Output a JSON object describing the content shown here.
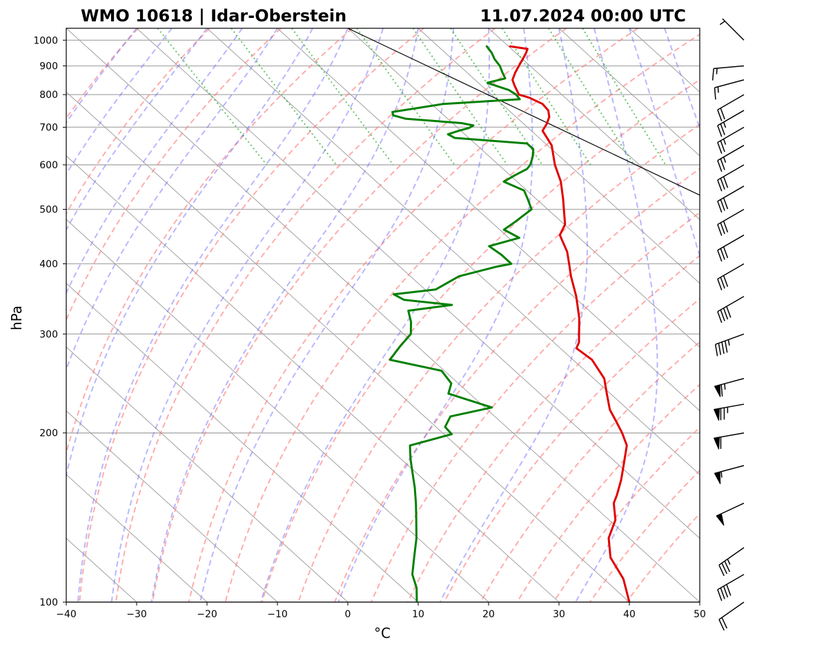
{
  "chart_data": {
    "type": "line",
    "subtype": "skew-T log-P sounding",
    "title_left": "WMO 10618 | Idar-Oberstein",
    "title_right": "11.07.2024 00:00 UTC",
    "xlabel": "°C",
    "ylabel": "hPa",
    "xlim": [
      -40,
      50
    ],
    "ylim": [
      1050,
      100
    ],
    "x_ticks": [
      -40,
      -30,
      -20,
      -10,
      0,
      10,
      20,
      30,
      40,
      50
    ],
    "x_tick_labels": [
      "−40",
      "−30",
      "−20",
      "−10",
      "0",
      "10",
      "20",
      "30",
      "40",
      "50"
    ],
    "y_ticks": [
      1000,
      900,
      800,
      700,
      600,
      500,
      400,
      300,
      200,
      100
    ],
    "y_tick_labels": [
      "1000",
      "900",
      "800",
      "700",
      "600",
      "500",
      "400",
      "300",
      "200",
      "100"
    ],
    "series": [
      {
        "name": "Temperature",
        "color": "#e00000",
        "points": [
          [
            975,
            20.2
          ],
          [
            965,
            22.3
          ],
          [
            950,
            21.5
          ],
          [
            925,
            20.0
          ],
          [
            900,
            18.4
          ],
          [
            875,
            16.8
          ],
          [
            850,
            15.3
          ],
          [
            830,
            14.7
          ],
          [
            800,
            13.9
          ],
          [
            790,
            14.9
          ],
          [
            770,
            15.8
          ],
          [
            750,
            15.6
          ],
          [
            730,
            14.7
          ],
          [
            710,
            13.3
          ],
          [
            690,
            11.6
          ],
          [
            650,
            10.6
          ],
          [
            600,
            8.0
          ],
          [
            560,
            6.2
          ],
          [
            520,
            3.7
          ],
          [
            500,
            2.3
          ],
          [
            470,
            0.1
          ],
          [
            450,
            -2.3
          ],
          [
            420,
            -3.9
          ],
          [
            400,
            -5.5
          ],
          [
            380,
            -7.2
          ],
          [
            350,
            -9.6
          ],
          [
            320,
            -12.6
          ],
          [
            300,
            -15.1
          ],
          [
            290,
            -16.4
          ],
          [
            283,
            -17.7
          ],
          [
            270,
            -17.3
          ],
          [
            250,
            -18.5
          ],
          [
            235,
            -20.5
          ],
          [
            220,
            -22.6
          ],
          [
            210,
            -23.5
          ],
          [
            200,
            -24.5
          ],
          [
            190,
            -25.8
          ],
          [
            175,
            -29.4
          ],
          [
            165,
            -32.0
          ],
          [
            155,
            -35.0
          ],
          [
            150,
            -36.7
          ],
          [
            140,
            -39.1
          ],
          [
            130,
            -42.9
          ],
          [
            120,
            -45.7
          ],
          [
            110,
            -47.2
          ],
          [
            100,
            -50.0
          ]
        ]
      },
      {
        "name": "Dewpoint",
        "color": "#008000",
        "points": [
          [
            975,
            16.9
          ],
          [
            950,
            16.6
          ],
          [
            925,
            16.0
          ],
          [
            900,
            15.7
          ],
          [
            875,
            15.0
          ],
          [
            855,
            14.5
          ],
          [
            840,
            11.3
          ],
          [
            830,
            12.0
          ],
          [
            815,
            13.2
          ],
          [
            800,
            13.5
          ],
          [
            785,
            13.3
          ],
          [
            770,
            1.7
          ],
          [
            745,
            -6.8
          ],
          [
            735,
            -7.2
          ],
          [
            725,
            -6.0
          ],
          [
            712,
            1.3
          ],
          [
            705,
            2.6
          ],
          [
            698,
            1.6
          ],
          [
            690,
            -0.3
          ],
          [
            680,
            -2.4
          ],
          [
            670,
            -2.0
          ],
          [
            655,
            7.4
          ],
          [
            640,
            7.4
          ],
          [
            620,
            6.1
          ],
          [
            600,
            4.5
          ],
          [
            590,
            3.4
          ],
          [
            575,
            0.7
          ],
          [
            560,
            -1.9
          ],
          [
            540,
            -0.4
          ],
          [
            520,
            -1.3
          ],
          [
            500,
            -2.3
          ],
          [
            475,
            -6.6
          ],
          [
            460,
            -9.4
          ],
          [
            445,
            -8.5
          ],
          [
            430,
            -14.1
          ],
          [
            415,
            -13.7
          ],
          [
            400,
            -13.7
          ],
          [
            395,
            -16.4
          ],
          [
            380,
            -23.1
          ],
          [
            360,
            -28.5
          ],
          [
            353,
            -35.2
          ],
          [
            345,
            -34.6
          ],
          [
            338,
            -28.6
          ],
          [
            330,
            -35.7
          ],
          [
            315,
            -37.1
          ],
          [
            300,
            -39.0
          ],
          [
            285,
            -42.5
          ],
          [
            270,
            -46.0
          ],
          [
            258,
            -40.4
          ],
          [
            245,
            -41.0
          ],
          [
            235,
            -43.0
          ],
          [
            222,
            -39.0
          ],
          [
            214,
            -46.3
          ],
          [
            205,
            -48.7
          ],
          [
            199,
            -48.9
          ],
          [
            190,
            -56.6
          ],
          [
            180,
            -58.6
          ],
          [
            170,
            -60.5
          ],
          [
            160,
            -62.5
          ],
          [
            150,
            -64.8
          ],
          [
            140,
            -67.4
          ],
          [
            130,
            -70.2
          ],
          [
            120,
            -73.6
          ],
          [
            112,
            -76.5
          ],
          [
            106,
            -78.0
          ],
          [
            100,
            -80.2
          ]
        ]
      }
    ],
    "parcel_line": {
      "name": "Parcel / reference line",
      "color": "#000000",
      "points": [
        [
          1050,
          0
        ],
        [
          250,
          50
        ]
      ]
    },
    "dry_adiabats_theta_K": [
      210,
      220,
      230,
      240,
      250,
      260,
      270,
      280,
      290,
      300,
      310,
      320,
      330,
      340,
      350,
      360,
      370,
      380,
      390,
      400,
      410,
      420,
      430
    ],
    "moist_adiabats_start_C": [
      -30,
      -25,
      -20,
      -15,
      -10,
      -5,
      0,
      5,
      10,
      15,
      20,
      25,
      30,
      35,
      40,
      45
    ],
    "mixing_ratios_gkg": [
      0.4,
      1,
      2,
      4,
      7,
      10,
      16,
      24,
      32
    ],
    "wind_barbs": [
      {
        "p": 1000,
        "speed_kt": 5,
        "dir_deg": 315
      },
      {
        "p": 900,
        "speed_kt": 15,
        "dir_deg": 265
      },
      {
        "p": 850,
        "speed_kt": 15,
        "dir_deg": 255
      },
      {
        "p": 800,
        "speed_kt": 20,
        "dir_deg": 240
      },
      {
        "p": 750,
        "speed_kt": 25,
        "dir_deg": 240
      },
      {
        "p": 700,
        "speed_kt": 25,
        "dir_deg": 240
      },
      {
        "p": 650,
        "speed_kt": 25,
        "dir_deg": 240
      },
      {
        "p": 600,
        "speed_kt": 30,
        "dir_deg": 240
      },
      {
        "p": 550,
        "speed_kt": 30,
        "dir_deg": 240
      },
      {
        "p": 500,
        "speed_kt": 30,
        "dir_deg": 240
      },
      {
        "p": 450,
        "speed_kt": 30,
        "dir_deg": 240
      },
      {
        "p": 400,
        "speed_kt": 30,
        "dir_deg": 240
      },
      {
        "p": 350,
        "speed_kt": 40,
        "dir_deg": 240
      },
      {
        "p": 300,
        "speed_kt": 45,
        "dir_deg": 250
      },
      {
        "p": 250,
        "speed_kt": 65,
        "dir_deg": 255
      },
      {
        "p": 225,
        "speed_kt": 75,
        "dir_deg": 260
      },
      {
        "p": 200,
        "speed_kt": 60,
        "dir_deg": 260
      },
      {
        "p": 175,
        "speed_kt": 55,
        "dir_deg": 255
      },
      {
        "p": 150,
        "speed_kt": 50,
        "dir_deg": 245
      },
      {
        "p": 125,
        "speed_kt": 35,
        "dir_deg": 235
      },
      {
        "p": 112,
        "speed_kt": 40,
        "dir_deg": 240
      },
      {
        "p": 100,
        "speed_kt": 20,
        "dir_deg": 235
      }
    ],
    "grid": true
  }
}
